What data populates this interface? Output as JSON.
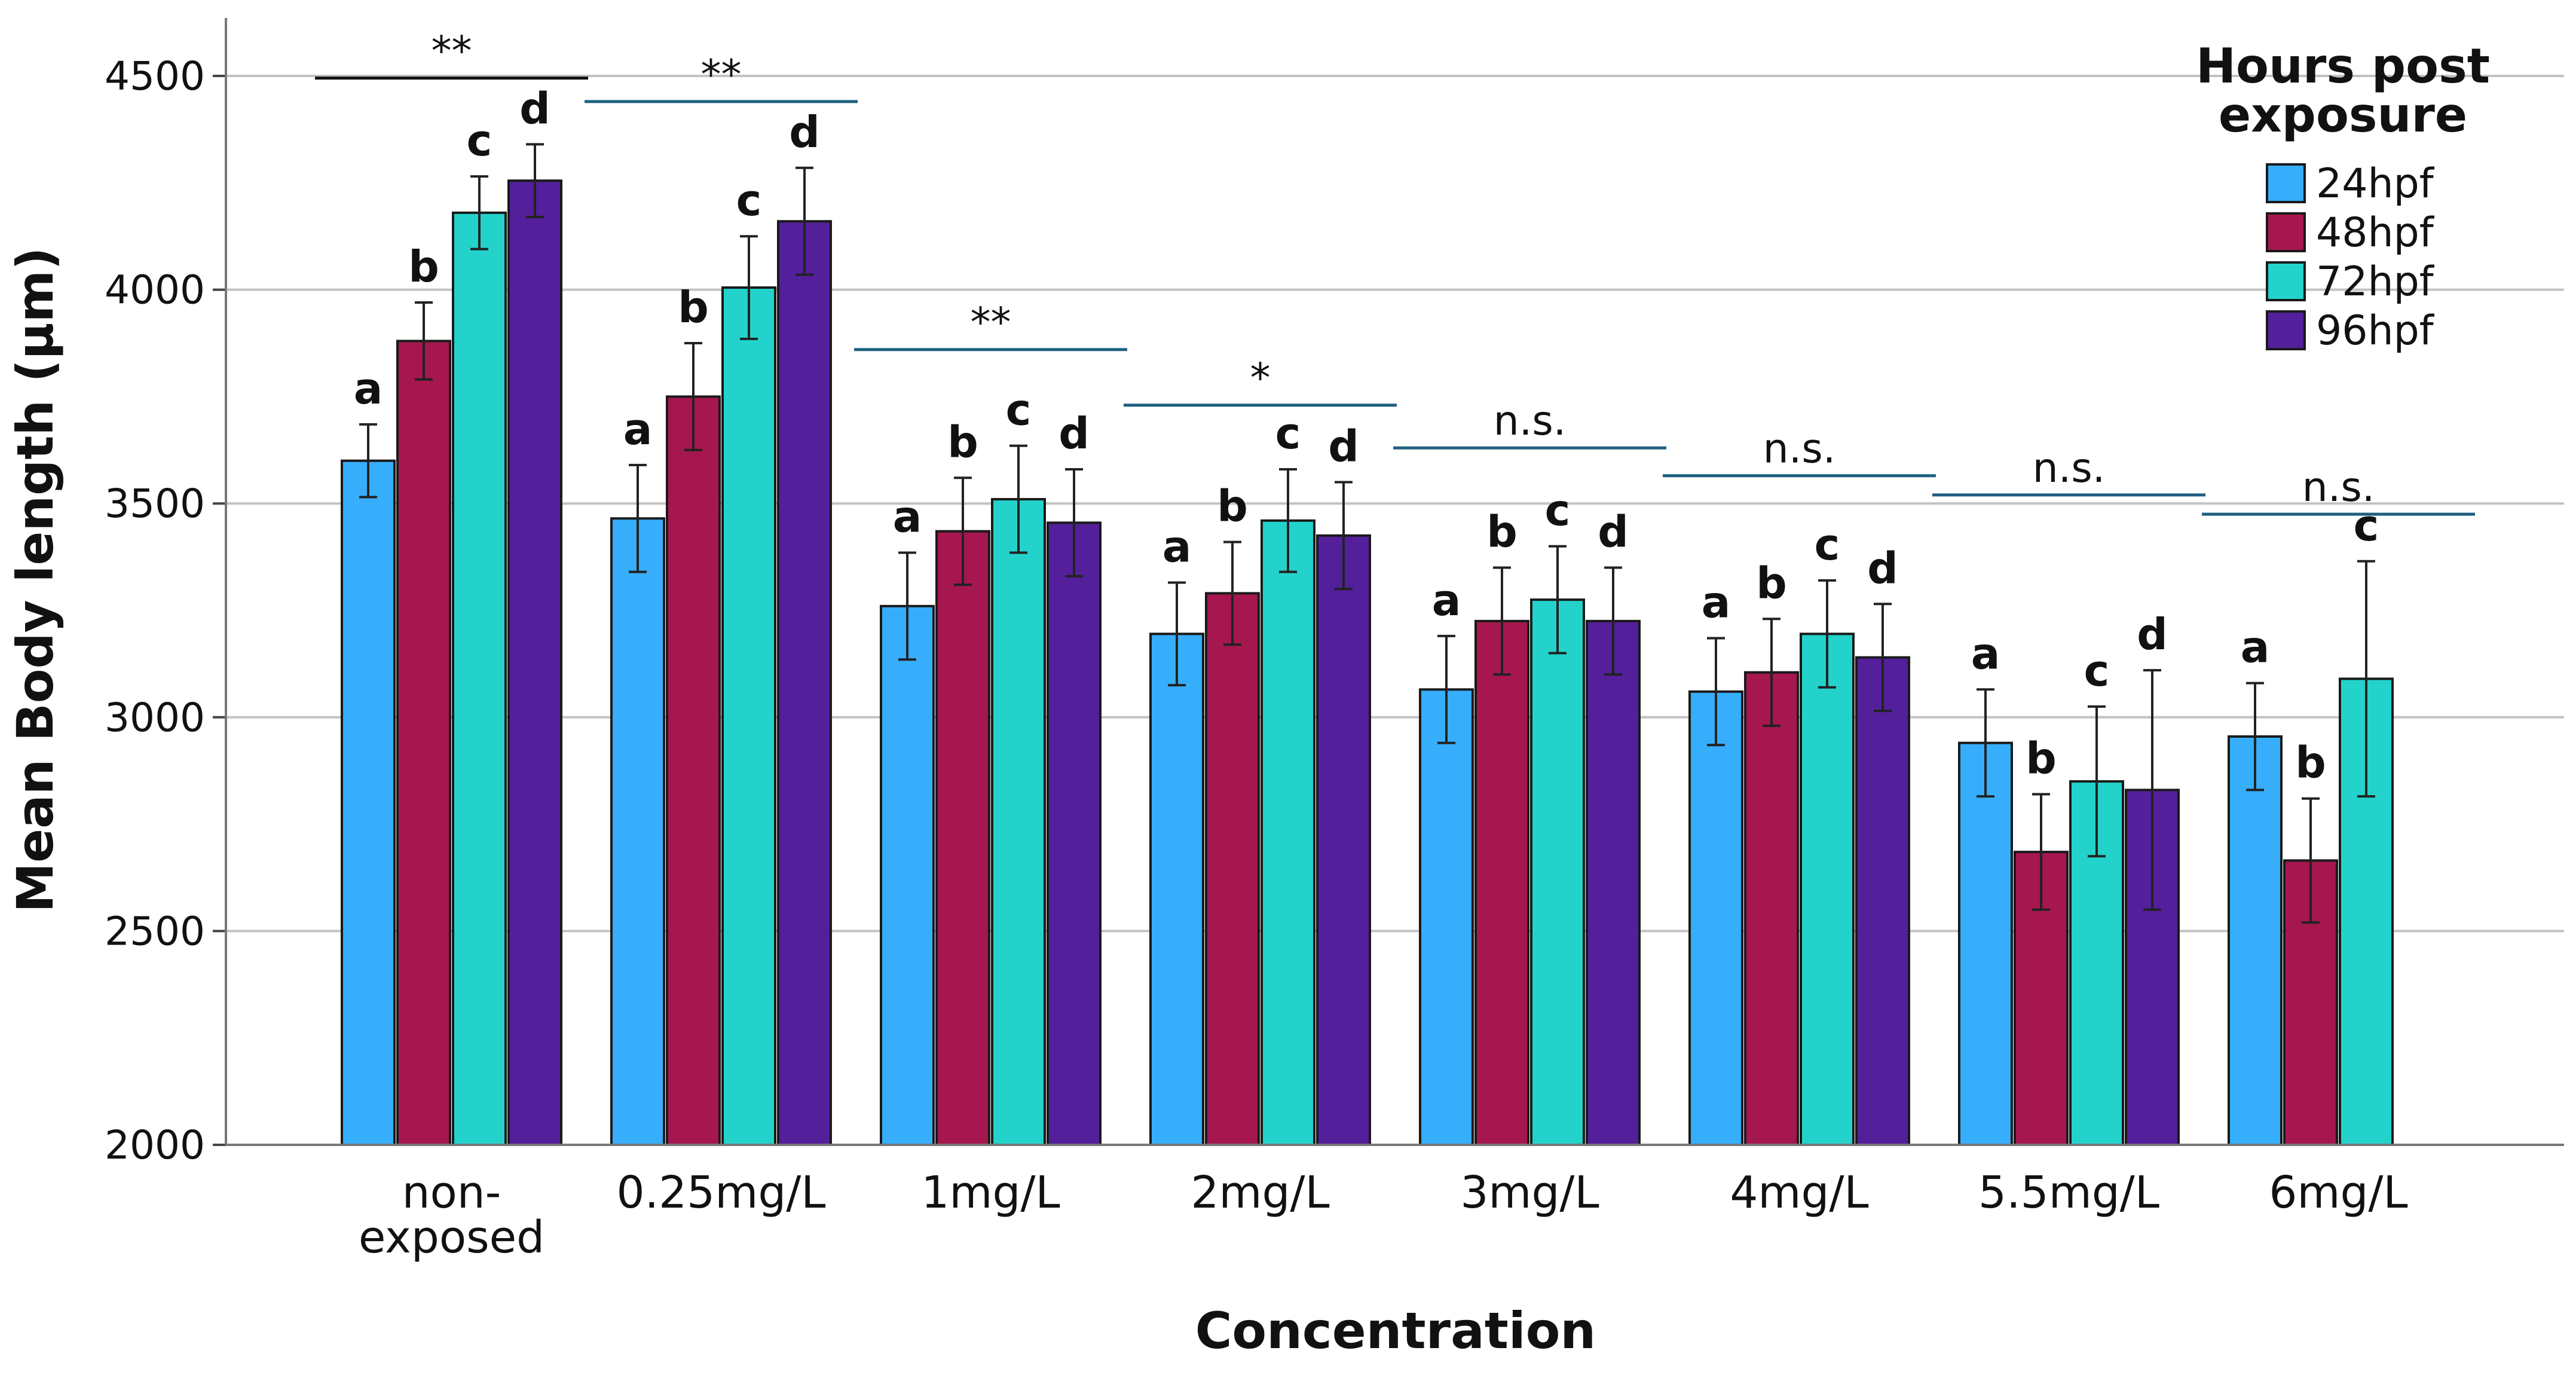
{
  "chart_data": {
    "type": "bar",
    "title": "",
    "xlabel": "Concentration",
    "ylabel": "Mean Body length (µm)",
    "ylim": [
      2000,
      4700
    ],
    "yticks": [
      2000,
      2500,
      3000,
      3500,
      4000,
      4500
    ],
    "grid": true,
    "legend": {
      "title_lines": [
        "Hours post",
        "exposure"
      ],
      "position": "top-right"
    },
    "categories": [
      [
        "non-",
        "exposed"
      ],
      [
        "0.25mg/L"
      ],
      [
        "1mg/L"
      ],
      [
        "2mg/L"
      ],
      [
        "3mg/L"
      ],
      [
        "4mg/L"
      ],
      [
        "5.5mg/L"
      ],
      [
        "6mg/L"
      ]
    ],
    "series": [
      {
        "name": "24hpf",
        "color": "#36aefc",
        "values": [
          3600,
          3465,
          3260,
          3195,
          3065,
          3060,
          2940,
          2955
        ],
        "errors": [
          85,
          125,
          125,
          120,
          125,
          125,
          125,
          125
        ],
        "letter": "a"
      },
      {
        "name": "48hpf",
        "color": "#a5174e",
        "values": [
          3880,
          3750,
          3435,
          3290,
          3225,
          3105,
          2685,
          2665
        ],
        "errors": [
          90,
          125,
          125,
          120,
          125,
          125,
          135,
          145
        ],
        "letter": "b"
      },
      {
        "name": "72hpf",
        "color": "#23d3cb",
        "values": [
          4180,
          4005,
          3510,
          3460,
          3275,
          3195,
          2850,
          3090
        ],
        "errors": [
          85,
          120,
          125,
          120,
          125,
          125,
          175,
          275
        ],
        "letter": "c"
      },
      {
        "name": "96hpf",
        "color": "#531f9a",
        "values": [
          4255,
          4160,
          3455,
          3425,
          3225,
          3140,
          2830,
          null
        ],
        "errors": [
          85,
          125,
          125,
          125,
          125,
          125,
          280,
          null
        ],
        "letter": "d"
      }
    ],
    "significance": [
      {
        "label": "**",
        "y": 4495,
        "line_color": "#111111"
      },
      {
        "label": "**",
        "y": 4440,
        "line_color": "#1f5f80"
      },
      {
        "label": "**",
        "y": 3860,
        "line_color": "#1f5f80"
      },
      {
        "label": "*",
        "y": 3730,
        "line_color": "#1f5f80"
      },
      {
        "label": "n.s.",
        "y": 3630,
        "line_color": "#1f5f80"
      },
      {
        "label": "n.s.",
        "y": 3565,
        "line_color": "#1f5f80"
      },
      {
        "label": "n.s.",
        "y": 3520,
        "line_color": "#1f5f80"
      },
      {
        "label": "n.s.",
        "y": 3475,
        "line_color": "#1f5f80"
      }
    ]
  }
}
